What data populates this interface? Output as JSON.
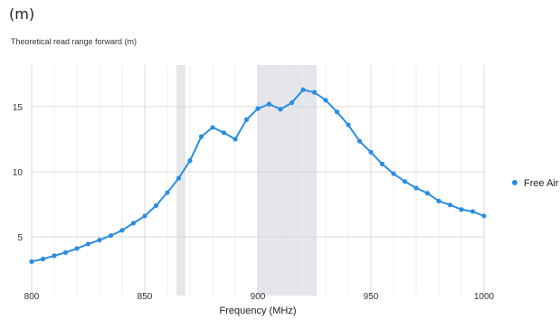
{
  "header": {
    "unit_title": "(m)",
    "subtitle": "Theoretical read range forward (m)"
  },
  "chart_data": {
    "type": "line",
    "title": "",
    "xlabel": "Frequency (MHz)",
    "ylabel": "",
    "xlim": [
      800,
      1000
    ],
    "ylim": [
      2,
      18
    ],
    "x_ticks": [
      800,
      850,
      900,
      950,
      1000
    ],
    "y_ticks": [
      5,
      10,
      15
    ],
    "grid": true,
    "legend_position": "right",
    "line_color": "#2b8de0",
    "highlight_color": "#e4e6ea",
    "highlight_bands": [
      [
        864,
        868
      ],
      [
        900,
        926
      ]
    ],
    "series": [
      {
        "name": "Free Air",
        "x": [
          800,
          805,
          810,
          815,
          820,
          825,
          830,
          835,
          840,
          845,
          850,
          855,
          860,
          865,
          870,
          875,
          880,
          885,
          890,
          895,
          900,
          905,
          910,
          915,
          920,
          925,
          930,
          935,
          940,
          945,
          950,
          955,
          960,
          965,
          970,
          975,
          980,
          985,
          990,
          995,
          1000
        ],
        "values": [
          3.1,
          3.3,
          3.55,
          3.8,
          4.1,
          4.45,
          4.75,
          5.1,
          5.5,
          6.05,
          6.6,
          7.4,
          8.4,
          9.5,
          10.85,
          12.7,
          13.4,
          13.0,
          12.5,
          14.0,
          14.85,
          15.2,
          14.8,
          15.3,
          16.3,
          16.1,
          15.5,
          14.6,
          13.6,
          12.35,
          11.5,
          10.6,
          9.85,
          9.25,
          8.75,
          8.35,
          7.75,
          7.45,
          7.1,
          6.95,
          6.6
        ]
      }
    ]
  }
}
